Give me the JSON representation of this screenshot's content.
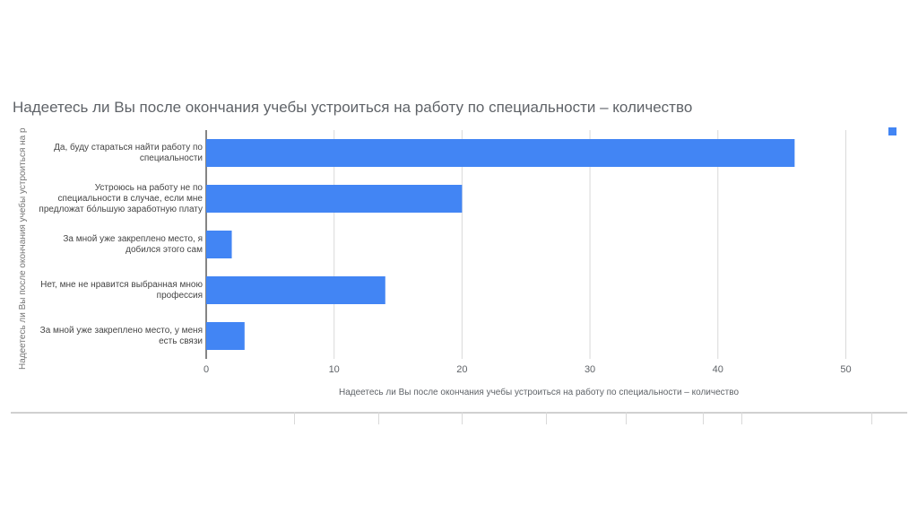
{
  "colors": {
    "bar": "#4285f4",
    "grid": "#d9d9d9",
    "axis": "#333333"
  },
  "chart_data": {
    "type": "bar",
    "orientation": "horizontal",
    "title": "Надеетесь ли Вы после окончания учебы устроиться на работу по специальности – количество",
    "xlabel": "Надеетесь ли Вы после окончания учебы устроиться на работу по специальности – количество",
    "ylabel": "Надеетесь ли Вы после окончания учебы устроиться на ра...",
    "categories": [
      [
        "Да, буду стараться найти работу по",
        "специальности"
      ],
      [
        "Устроюсь на работу не по",
        "специальности в случае, если мне",
        "предложат бо́льшую заработную плату"
      ],
      [
        "За мной уже закреплено место, я",
        "добился этого сам"
      ],
      [
        "Нет, мне не нравится выбранная мною",
        "профессия"
      ],
      [
        "За мной уже закреплено место, у меня",
        "есть связи"
      ]
    ],
    "values": [
      46,
      20,
      2,
      14,
      3
    ],
    "xlim": [
      0,
      52
    ],
    "ticks": [
      "0",
      "10",
      "20",
      "30",
      "40",
      "50"
    ],
    "grid": true,
    "legend": "top-right"
  }
}
